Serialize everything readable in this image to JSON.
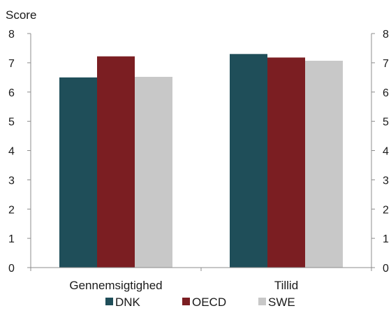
{
  "chart_data": {
    "type": "bar",
    "ylabel": "Score",
    "ylim": [
      0,
      8
    ],
    "yticks": [
      0,
      1,
      2,
      3,
      4,
      5,
      6,
      7,
      8
    ],
    "secondary_axis_ticks": [
      "0",
      "1",
      "2",
      "3",
      "4",
      "5",
      "6",
      "7",
      "8"
    ],
    "categories": [
      "Gennemsigtighed",
      "Tillid"
    ],
    "series": [
      {
        "name": "DNK",
        "color": "#1f4e59",
        "values": [
          6.5,
          7.3
        ]
      },
      {
        "name": "OECD",
        "color": "#7b1e22",
        "values": [
          7.22,
          7.18
        ]
      },
      {
        "name": "SWE",
        "color": "#c8c8c8",
        "values": [
          6.52,
          7.07
        ]
      }
    ],
    "legend_position": "bottom",
    "grid": false
  }
}
